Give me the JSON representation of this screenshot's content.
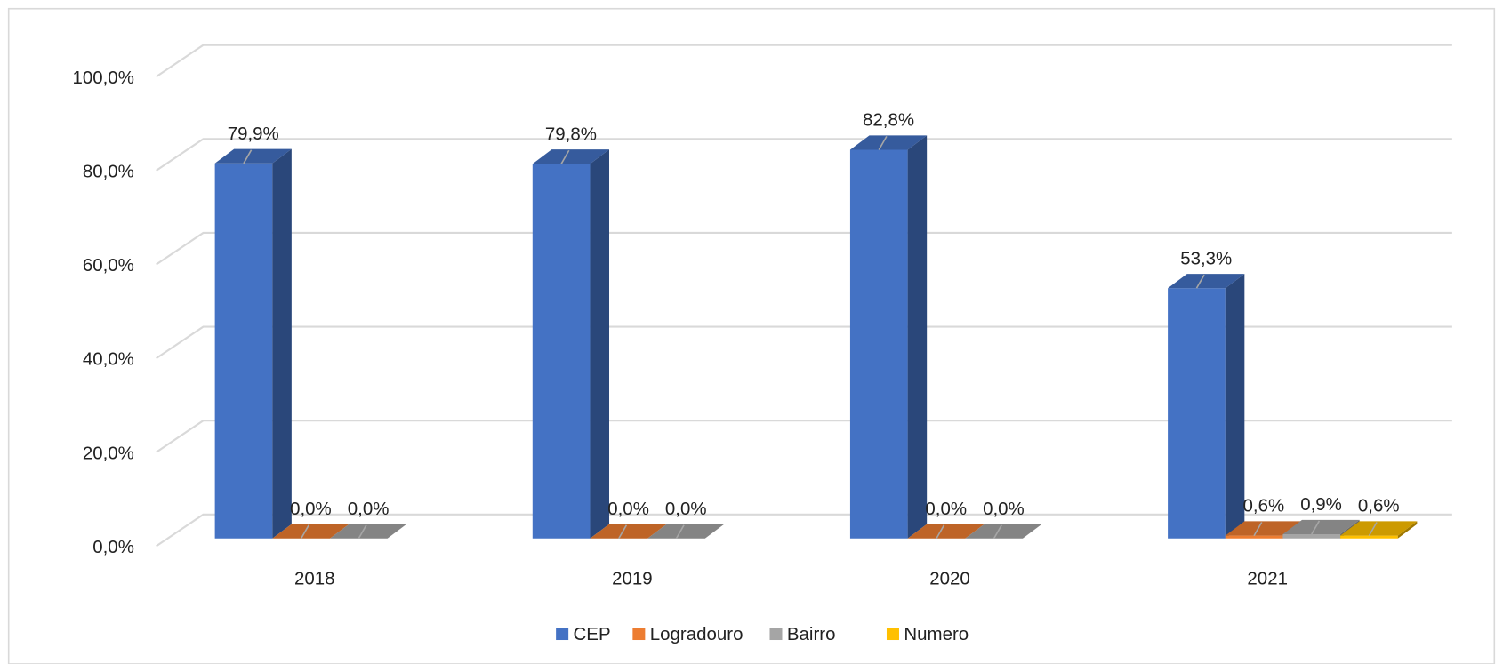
{
  "chart_data": {
    "type": "bar3d",
    "categories": [
      "2018",
      "2019",
      "2020",
      "2021"
    ],
    "series": [
      {
        "name": "CEP",
        "color": "#4472c4",
        "values": [
          79.9,
          79.8,
          82.8,
          53.3
        ],
        "value_labels": [
          "79,9%",
          "79,8%",
          "82,8%",
          "53,3%"
        ]
      },
      {
        "name": "Logradouro",
        "color": "#ed7d31",
        "values": [
          0,
          0,
          0,
          0.6
        ],
        "value_labels": [
          "0,0%",
          "0,0%",
          "0,0%",
          "0,6%"
        ]
      },
      {
        "name": "Bairro",
        "color": "#a5a5a5",
        "values": [
          0,
          0,
          0,
          0.9
        ],
        "value_labels": [
          "0,0%",
          "0,0%",
          "0,0%",
          "0,9%"
        ]
      },
      {
        "name": "Numero",
        "color": "#ffc000",
        "values": [
          null,
          null,
          null,
          0.6
        ],
        "value_labels": [
          null,
          null,
          null,
          "0,6%"
        ]
      }
    ],
    "ylim": [
      0,
      100
    ],
    "yticks": [
      {
        "value": 0,
        "label": "0,0%"
      },
      {
        "value": 20,
        "label": "20,0%"
      },
      {
        "value": 40,
        "label": "40,0%"
      },
      {
        "value": 60,
        "label": "60,0%"
      },
      {
        "value": 80,
        "label": "80,0%"
      },
      {
        "value": 100,
        "label": "100,0%"
      }
    ],
    "grid": true,
    "legend": "bottom"
  }
}
